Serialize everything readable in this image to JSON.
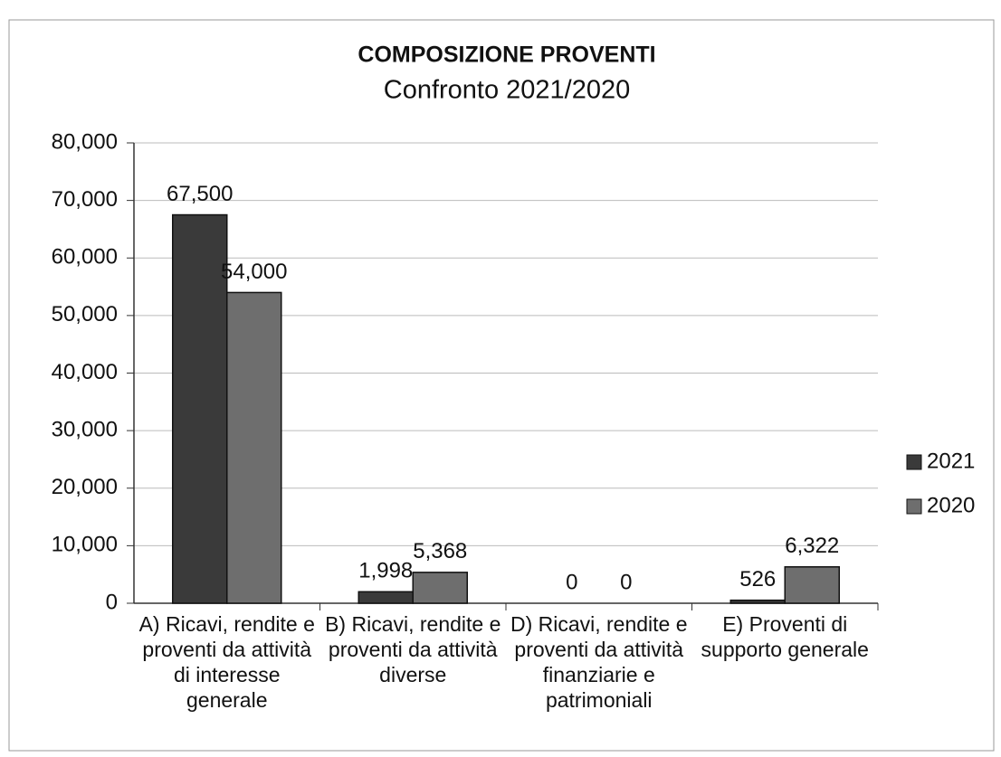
{
  "chart_data": {
    "type": "bar",
    "title": "COMPOSIZIONE PROVENTI",
    "subtitle": "Confronto 2021/2020",
    "categories": [
      "A) Ricavi, rendite e proventi da attività di interesse generale",
      "B) Ricavi, rendite e proventi da attività diverse",
      "D) Ricavi, rendite e proventi da attività finanziarie e patrimoniali",
      "E) Proventi di supporto generale"
    ],
    "series": [
      {
        "name": "2021",
        "color": "#3a3a3a",
        "values": [
          67500,
          1998,
          0,
          526
        ],
        "value_labels": [
          "67,500",
          "1,998",
          "0",
          "526"
        ]
      },
      {
        "name": "2020",
        "color": "#6e6e6e",
        "values": [
          54000,
          5368,
          0,
          6322
        ],
        "value_labels": [
          "54,000",
          "5,368",
          "0",
          "6,322"
        ]
      }
    ],
    "ylim": [
      0,
      80000
    ],
    "yticks": [
      0,
      {
        "value": 10000,
        "label": "10,000"
      },
      {
        "value": 20000,
        "label": "20,000"
      },
      {
        "value": 30000,
        "label": "30,000"
      },
      {
        "value": 40000,
        "label": "40,000"
      },
      {
        "value": 50000,
        "label": "50,000"
      },
      {
        "value": 60000,
        "label": "60,000"
      },
      {
        "value": 70000,
        "label": "70,000"
      },
      {
        "value": 80000,
        "label": "80,000"
      }
    ],
    "grid": true,
    "legend": "right"
  }
}
